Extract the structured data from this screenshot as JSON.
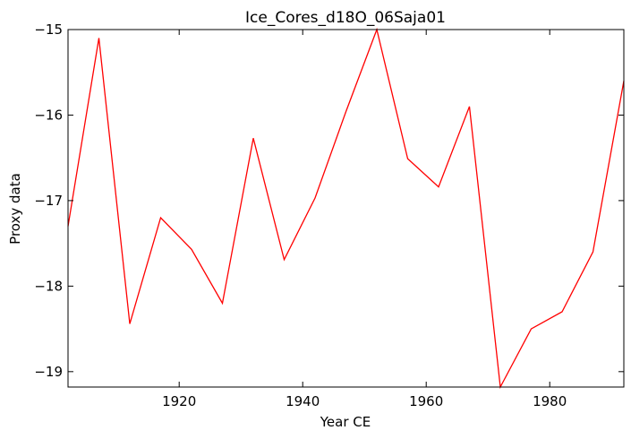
{
  "chart_data": {
    "type": "line",
    "title": "Ice_Cores_d18O_06Saja01",
    "xlabel": "Year CE",
    "ylabel": "Proxy data",
    "xlim": [
      1902,
      1992
    ],
    "ylim": [
      -19.18,
      -15.0
    ],
    "grid": false,
    "xticks": [
      1920,
      1940,
      1960,
      1980
    ],
    "xtick_labels": [
      "1920",
      "1940",
      "1960",
      "1980"
    ],
    "yticks": [
      -15,
      -16,
      -17,
      -18,
      -19
    ],
    "ytick_labels": [
      "−15",
      "−16",
      "−17",
      "−18",
      "−19"
    ],
    "series": [
      {
        "color": "#ff0000",
        "x": [
          1902,
          1907,
          1912,
          1917,
          1922,
          1927,
          1932,
          1937,
          1942,
          1947,
          1952,
          1957,
          1962,
          1967,
          1972,
          1977,
          1982,
          1987,
          1992
        ],
        "y": [
          -17.3,
          -15.1,
          -18.44,
          -17.2,
          -17.57,
          -18.2,
          -16.27,
          -17.69,
          -16.97,
          -15.96,
          -15.0,
          -16.51,
          -16.84,
          -15.9,
          -19.18,
          -18.5,
          -18.3,
          -17.6,
          -15.6
        ]
      }
    ]
  }
}
